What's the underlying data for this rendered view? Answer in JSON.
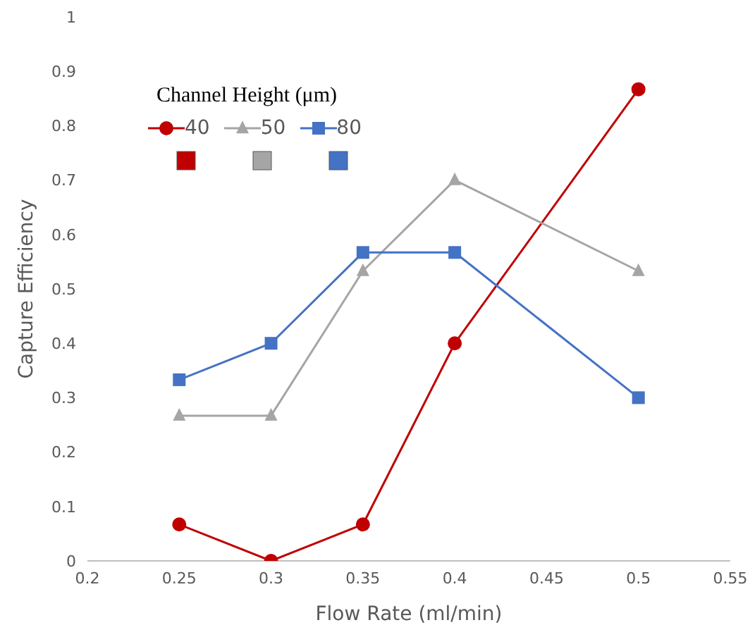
{
  "chart_data": {
    "type": "line",
    "xlabel": "Flow Rate (ml/min)",
    "ylabel": "Capture Efficiency",
    "legend_title": "Channel Height (μm)",
    "legend": "top left",
    "xlim": [
      0.2,
      0.55
    ],
    "xticks": [
      0.2,
      0.25,
      0.3,
      0.35,
      0.4,
      0.45,
      0.5,
      0.55
    ],
    "ylim": [
      0,
      1
    ],
    "yticks": [
      0,
      0.1,
      0.2,
      0.3,
      0.4,
      0.5,
      0.6,
      0.7,
      0.8,
      0.9,
      1
    ],
    "grid": false,
    "x": [
      0.25,
      0.3,
      0.35,
      0.4,
      0.5
    ],
    "series": [
      {
        "name": "40",
        "color": "#c00000",
        "marker": "circle",
        "values": [
          0.067,
          0,
          0.067,
          0.4,
          0.867
        ]
      },
      {
        "name": "50",
        "color": "#a5a5a5",
        "marker": "triangle",
        "values": [
          0.267,
          0.267,
          0.533,
          0.7,
          0.533
        ]
      },
      {
        "name": "80",
        "color": "#4472c4",
        "marker": "square",
        "values": [
          0.333,
          0.4,
          0.567,
          0.567,
          0.3
        ]
      }
    ]
  }
}
